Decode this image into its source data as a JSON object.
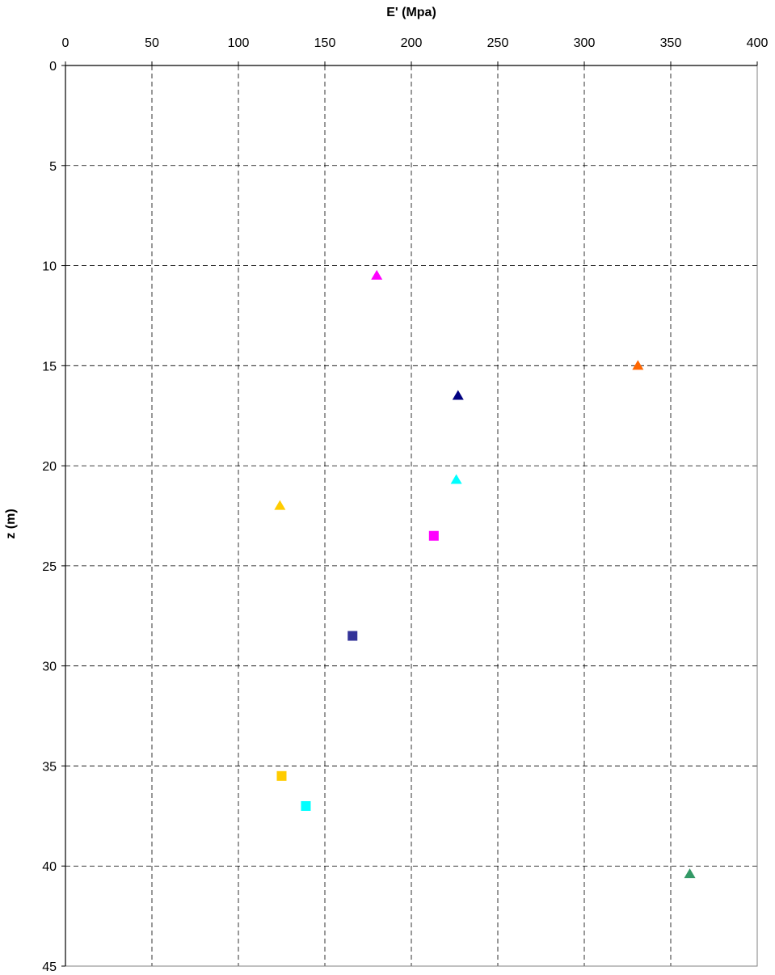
{
  "chart_data": {
    "type": "scatter",
    "title": "",
    "xlabel": "E' (Mpa)",
    "ylabel": "z (m)",
    "xlim": [
      0,
      400
    ],
    "ylim": [
      0,
      45
    ],
    "x_axis_position": "top",
    "y_axis_inverted": true,
    "grid": true,
    "grid_style": "dashed",
    "legend": "none",
    "x_ticks": [
      0,
      50,
      100,
      150,
      200,
      250,
      300,
      350,
      400
    ],
    "y_ticks": [
      0,
      5,
      10,
      15,
      20,
      25,
      30,
      35,
      40,
      45
    ],
    "points": [
      {
        "x": 180,
        "y": 10.5,
        "marker": "triangle",
        "color": "#FF00FF"
      },
      {
        "x": 331,
        "y": 15.0,
        "marker": "triangle",
        "color": "#FF6600"
      },
      {
        "x": 227,
        "y": 16.5,
        "marker": "triangle",
        "color": "#000080"
      },
      {
        "x": 226,
        "y": 20.7,
        "marker": "triangle",
        "color": "#00FFFF"
      },
      {
        "x": 124,
        "y": 22.0,
        "marker": "triangle",
        "color": "#FFCC00"
      },
      {
        "x": 213,
        "y": 23.5,
        "marker": "square",
        "color": "#FF00FF"
      },
      {
        "x": 166,
        "y": 28.5,
        "marker": "square",
        "color": "#333399"
      },
      {
        "x": 125,
        "y": 35.5,
        "marker": "square",
        "color": "#FFCC00"
      },
      {
        "x": 139,
        "y": 37.0,
        "marker": "square",
        "color": "#00FFFF"
      },
      {
        "x": 361,
        "y": 40.4,
        "marker": "triangle",
        "color": "#339966"
      }
    ]
  }
}
